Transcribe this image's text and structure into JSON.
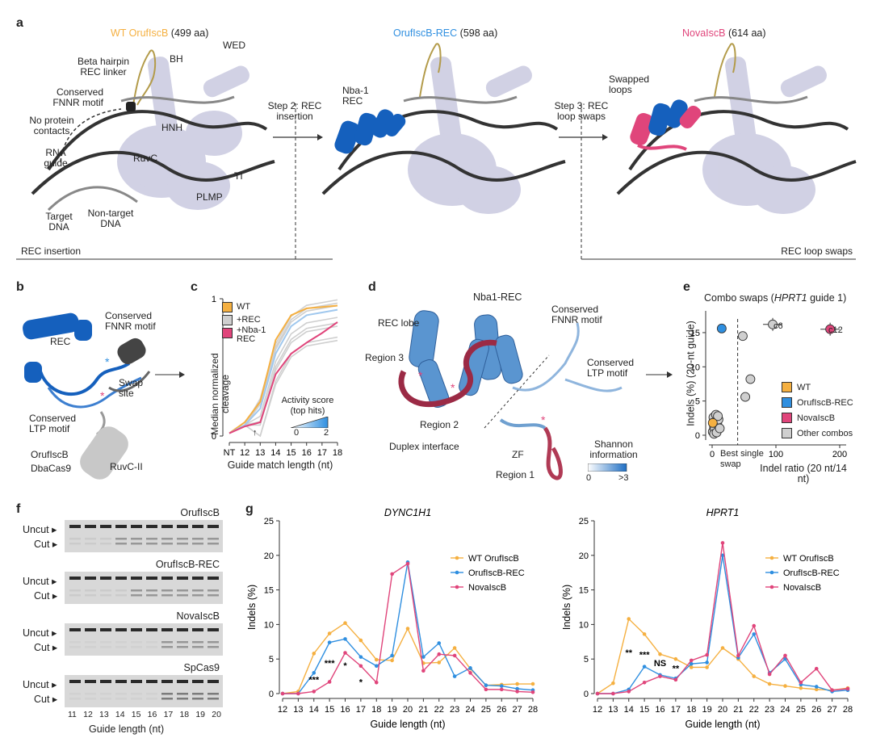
{
  "colors": {
    "wt": "#f5b041",
    "rec": "#2f8fe0",
    "nova": "#e0457b",
    "grey": "#bdbdbd",
    "dna": "#333333",
    "helix_blue": "#1560bd",
    "loop_red": "#9b2a45",
    "protein_ghost": "#c9c9e0"
  },
  "panel_a": {
    "label": "a",
    "title1_name": "WT OrufIscB",
    "title1_aa": "(499 aa)",
    "title2_name": "OrufIscB-REC",
    "title2_aa": "(598 aa)",
    "title3_name": "NovaIscB",
    "title3_aa": "(614 aa)",
    "left_labels": {
      "beta_hairpin": "Beta hairpin REC linker",
      "bh": "BH",
      "wed": "WED",
      "fnnr": "Conserved FNNR motif",
      "no_protein": "No protein contacts",
      "hnh": "HNH",
      "rna_guide": "RNA guide",
      "ruvc": "RuvC",
      "ti": "TI",
      "plmp": "PLMP",
      "target_dna": "Target DNA",
      "nontarget_dna": "Non-target DNA"
    },
    "step2": "Step 2: REC insertion",
    "nba1": "Nba-1 REC",
    "step3": "Step 3: REC loop swaps",
    "swapped": "Swapped loops",
    "bottom_left": "REC insertion",
    "bottom_right": "REC loop swaps"
  },
  "panel_b": {
    "label": "b",
    "conserved_fnnr": "Conserved FNNR motif",
    "rec": "REC",
    "swap_site": "Swap site",
    "conserved_ltp": "Conserved LTP motif",
    "orufiscb": "OrufIscB",
    "dbacas9": "DbaCas9",
    "ruvc2": "RuvC-II"
  },
  "panel_c": {
    "label": "c",
    "ylabel": "Median normalized cleavage",
    "xlabel": "Guide match length (nt)",
    "legend": [
      "WT",
      "+REC",
      "+Nba-1 REC"
    ],
    "activity_label": "Activity score (top hits)",
    "activity_min": "0",
    "activity_max": "2",
    "arrow_mark": "↑"
  },
  "panel_d": {
    "label": "d",
    "title": "Nba1-REC",
    "rec_lobe": "REC lobe",
    "region3": "Region 3",
    "region2": "Region 2",
    "region1": "Region 1",
    "duplex": "Duplex interface",
    "zf": "ZF",
    "fnnr": "Conserved FNNR motif",
    "ltp": "Conserved LTP motif",
    "shannon": "Shannon information",
    "sh_min": "0",
    "sh_max": ">3"
  },
  "panel_e": {
    "label": "e",
    "title_prefix": "Combo swaps (",
    "title_italic": "HPRT1",
    "title_suffix": " guide 1)",
    "ylabel": "Indels (%) (20-nt guide)",
    "xlabel": "Indel ratio (20 nt/14 nt)",
    "best_single_swap": "Best single swap",
    "c6": "c6",
    "c12": "c12",
    "legend": [
      "WT",
      "OrufIscB-REC",
      "NovaIscB",
      "Other combos"
    ]
  },
  "panel_f": {
    "label": "f",
    "gels": [
      "OrufIscB",
      "OrufIscB-REC",
      "NovaIscB",
      "SpCas9"
    ],
    "uncut": "Uncut",
    "cut": "Cut",
    "xlabel": "Guide length (nt)",
    "lanes": [
      "11",
      "12",
      "13",
      "14",
      "15",
      "16",
      "17",
      "18",
      "19",
      "20"
    ]
  },
  "panel_g": {
    "label": "g",
    "ylabel": "Indels (%)",
    "xlabel": "Guide length (nt)",
    "legend": [
      "WT OrufIscB",
      "OrufIscB-REC",
      "NovaIscB"
    ],
    "dync_sig": [
      "***",
      "***",
      "*",
      "*"
    ],
    "hprt_sig": [
      "**",
      "***",
      "NS",
      "**"
    ]
  },
  "chart_data": [
    {
      "type": "line",
      "title": "",
      "panel": "c",
      "categories": [
        "NT",
        "12",
        "13",
        "14",
        "15",
        "16",
        "17",
        "18"
      ],
      "xlabel": "Guide match length (nt)",
      "ylabel": "Median normalized cleavage",
      "ylim": [
        0,
        1
      ],
      "yticks": [
        0,
        1
      ],
      "series": [
        {
          "name": "WT",
          "values": [
            0.02,
            0.1,
            0.25,
            0.7,
            0.88,
            0.93,
            0.94,
            0.95
          ]
        },
        {
          "name": "+REC",
          "values": [
            0.02,
            0.08,
            0.2,
            0.6,
            0.8,
            0.88,
            0.9,
            0.92
          ]
        },
        {
          "name": "+Nba-1 REC",
          "values": [
            0.02,
            0.07,
            0.1,
            0.45,
            0.6,
            0.68,
            0.75,
            0.83
          ]
        }
      ]
    },
    {
      "type": "scatter",
      "title": "Combo swaps (HPRT1 guide 1)",
      "panel": "e",
      "xlabel": "Indel ratio (20 nt/14 nt)",
      "ylabel": "Indels (%) (20-nt guide)",
      "xticks": [
        0,
        100,
        200
      ],
      "yticks": [
        0,
        5,
        10,
        15
      ],
      "series": [
        {
          "name": "WT",
          "points": [
            [
              1,
              1.8
            ]
          ]
        },
        {
          "name": "OrufIscB-REC",
          "points": [
            [
              15,
              15.6
            ]
          ]
        },
        {
          "name": "NovaIscB",
          "points": [
            [
              185,
              15.5
            ]
          ]
        },
        {
          "name": "Other combos",
          "points": [
            [
              1,
              0.5
            ],
            [
              3,
              1.2
            ],
            [
              5,
              2.0
            ],
            [
              2,
              2.6
            ],
            [
              6,
              3.0
            ],
            [
              4,
              0.9
            ],
            [
              8,
              1.6
            ],
            [
              10,
              2.3
            ],
            [
              3,
              0.2
            ],
            [
              7,
              0.4
            ],
            [
              12,
              1.0
            ],
            [
              9,
              2.8
            ],
            [
              48,
              14.5
            ],
            [
              60,
              8.2
            ],
            [
              52,
              5.6
            ],
            [
              95,
              16.2
            ]
          ]
        }
      ]
    },
    {
      "type": "line",
      "title": "DYNC1H1",
      "panel": "g",
      "x": [
        12,
        13,
        14,
        15,
        16,
        17,
        18,
        19,
        20,
        21,
        22,
        23,
        24,
        25,
        26,
        27,
        28
      ],
      "xlabel": "Guide length (nt)",
      "ylabel": "Indels (%)",
      "ylim": [
        0,
        25
      ],
      "yticks": [
        0,
        5,
        10,
        15,
        20,
        25
      ],
      "series": [
        {
          "name": "WT OrufIscB",
          "values": [
            0,
            0.3,
            5.8,
            8.7,
            10.2,
            7.7,
            4.9,
            4.8,
            9.4,
            4.4,
            4.5,
            6.6,
            3.6,
            1.2,
            1.3,
            1.4,
            1.4
          ]
        },
        {
          "name": "OrufIscB-REC",
          "values": [
            0,
            0,
            3.0,
            7.4,
            7.9,
            5.3,
            4.0,
            5.5,
            19.0,
            5.3,
            7.3,
            2.5,
            3.7,
            1.2,
            1.1,
            0.7,
            0.5
          ]
        },
        {
          "name": "NovaIscB",
          "values": [
            0,
            0,
            0.3,
            1.7,
            5.9,
            4.0,
            1.6,
            17.3,
            18.8,
            3.3,
            5.7,
            5.5,
            3.0,
            0.6,
            0.6,
            0.3,
            0.2
          ]
        }
      ]
    },
    {
      "type": "line",
      "title": "HPRT1",
      "panel": "g",
      "x": [
        12,
        13,
        14,
        15,
        16,
        17,
        18,
        19,
        20,
        21,
        22,
        23,
        24,
        25,
        26,
        27,
        28
      ],
      "xlabel": "Guide length (nt)",
      "ylabel": "Indels (%)",
      "ylim": [
        0,
        25
      ],
      "yticks": [
        0,
        5,
        10,
        15,
        20,
        25
      ],
      "series": [
        {
          "name": "WT OrufIscB",
          "values": [
            0,
            1.5,
            10.8,
            8.6,
            5.7,
            5.0,
            3.8,
            3.8,
            6.6,
            5.0,
            2.5,
            1.4,
            1.1,
            0.8,
            0.6,
            0.5,
            0.8
          ]
        },
        {
          "name": "OrufIscB-REC",
          "values": [
            0,
            0,
            0.6,
            3.9,
            2.7,
            2.2,
            4.3,
            4.5,
            20.0,
            5.2,
            8.6,
            3.0,
            5.0,
            1.3,
            1.0,
            0.3,
            0.5
          ]
        },
        {
          "name": "NovaIscB",
          "values": [
            0,
            0,
            0.3,
            1.6,
            2.5,
            2.0,
            4.8,
            5.6,
            21.8,
            5.5,
            9.8,
            2.8,
            5.5,
            1.6,
            3.6,
            0.5,
            0.7
          ]
        }
      ]
    }
  ]
}
